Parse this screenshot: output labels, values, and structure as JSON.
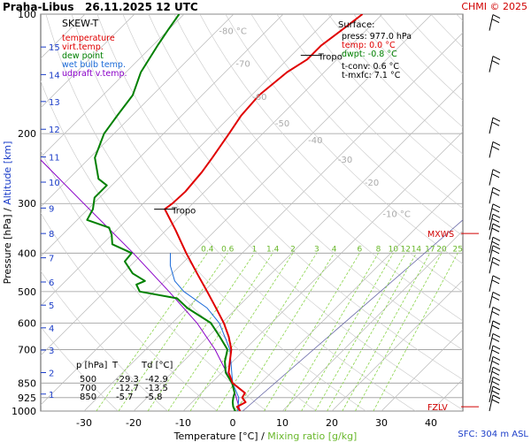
{
  "header": {
    "station": "Praha-Libus",
    "datetime": "26.11.2025 12 UTC",
    "credit": "CHMI © 2025"
  },
  "chart_data": {
    "type": "line",
    "title": "SKEW-T",
    "legend": [
      {
        "label": "temperature",
        "color": "#e00000"
      },
      {
        "label": "virt.temp.",
        "color": "#e00000"
      },
      {
        "label": "dew point",
        "color": "#008000"
      },
      {
        "label": "wet bulb temp.",
        "color": "#1a6ad8"
      },
      {
        "label": "udpraft v.temp.",
        "color": "#8a00c8"
      }
    ],
    "xlabel": "Temperature [°C]",
    "xlabel_sep": "/",
    "xlabel2": "Mixing ratio [g/kg]",
    "ylabel": "Pressure [hPa]",
    "ylabel_sep": "/",
    "ylabel2": "Altitude [km]",
    "x_ticks": [
      -30,
      -20,
      -10,
      0,
      10,
      20,
      30,
      40
    ],
    "xlim": [
      -37,
      43
    ],
    "y_ticks": [
      100,
      200,
      300,
      400,
      500,
      600,
      700,
      850,
      925,
      1000
    ],
    "ylim": [
      100,
      1000
    ],
    "y_scale": "log",
    "km_ticks": [
      "1",
      "2",
      "3",
      "4",
      "5",
      "6",
      "7",
      "8",
      "9",
      "10",
      "11",
      "12",
      "13",
      "14",
      "15"
    ],
    "km_pressures": [
      906,
      800,
      702,
      617,
      541,
      473,
      411,
      357,
      308,
      265,
      229,
      195,
      166,
      142,
      121
    ],
    "isotherm_labels": [
      {
        "label": "-80 °C",
        "t": -80,
        "p": 110
      },
      {
        "label": "-70",
        "t": -70,
        "p": 133
      },
      {
        "label": "-60",
        "t": -60,
        "p": 161
      },
      {
        "label": "-50",
        "t": -50,
        "p": 188
      },
      {
        "label": "-40",
        "t": -40,
        "p": 207
      },
      {
        "label": "-30",
        "t": -30,
        "p": 232
      },
      {
        "label": "-20",
        "t": -20,
        "p": 265
      },
      {
        "label": "-10 °C",
        "t": -10,
        "p": 318
      }
    ],
    "mixing_ratio_labels": [
      "0.4",
      "0.6",
      "1",
      "1.4",
      "2",
      "3",
      "4",
      "6",
      "8",
      "10",
      "12",
      "14",
      "17",
      "20",
      "25"
    ],
    "mixing_ratio_values": [
      0.4,
      0.6,
      1,
      1.4,
      2,
      3,
      4,
      6,
      8,
      10,
      12,
      14,
      17,
      20,
      25
    ],
    "temperature": [
      [
        1000,
        1.5
      ],
      [
        975,
        0.0
      ],
      [
        950,
        0.8
      ],
      [
        925,
        -0.8
      ],
      [
        900,
        -1.2
      ],
      [
        850,
        -5.7
      ],
      [
        800,
        -8.6
      ],
      [
        750,
        -10.6
      ],
      [
        700,
        -12.7
      ],
      [
        650,
        -15.8
      ],
      [
        600,
        -19.6
      ],
      [
        550,
        -24.2
      ],
      [
        500,
        -29.3
      ],
      [
        450,
        -35.0
      ],
      [
        400,
        -41.3
      ],
      [
        350,
        -48.1
      ],
      [
        310,
        -54.5
      ],
      [
        300,
        -54.1
      ],
      [
        280,
        -53.9
      ],
      [
        250,
        -54.5
      ],
      [
        230,
        -55.3
      ],
      [
        200,
        -56.8
      ],
      [
        180,
        -58.0
      ],
      [
        160,
        -58.5
      ],
      [
        140,
        -57.5
      ],
      [
        130,
        -56.0
      ],
      [
        120,
        -56.0
      ],
      [
        110,
        -55.0
      ],
      [
        100,
        -54.0
      ]
    ],
    "dew_point": [
      [
        1000,
        0.5
      ],
      [
        975,
        -0.8
      ],
      [
        950,
        -1.8
      ],
      [
        925,
        -2.6
      ],
      [
        900,
        -3.3
      ],
      [
        850,
        -5.8
      ],
      [
        800,
        -9.2
      ],
      [
        750,
        -11.6
      ],
      [
        700,
        -13.5
      ],
      [
        650,
        -17.6
      ],
      [
        600,
        -22.2
      ],
      [
        550,
        -30.0
      ],
      [
        520,
        -34.0
      ],
      [
        500,
        -42.9
      ],
      [
        480,
        -45.0
      ],
      [
        470,
        -44.0
      ],
      [
        450,
        -48.0
      ],
      [
        420,
        -52.0
      ],
      [
        400,
        -52.3
      ],
      [
        380,
        -58.0
      ],
      [
        360,
        -60.0
      ],
      [
        345,
        -62.0
      ],
      [
        330,
        -68.0
      ],
      [
        310,
        -69.0
      ],
      [
        290,
        -71.0
      ],
      [
        270,
        -71.0
      ],
      [
        260,
        -74.0
      ],
      [
        230,
        -79.0
      ],
      [
        200,
        -82.0
      ],
      [
        180,
        -83.0
      ],
      [
        160,
        -84.0
      ],
      [
        140,
        -87.0
      ],
      [
        120,
        -89.0
      ],
      [
        110,
        -90.0
      ],
      [
        100,
        -91.0
      ]
    ],
    "wet_bulb": [
      [
        1000,
        1.0
      ],
      [
        925,
        -1.5
      ],
      [
        850,
        -5.7
      ],
      [
        700,
        -13.0
      ],
      [
        600,
        -20.5
      ],
      [
        550,
        -26.0
      ],
      [
        500,
        -34.0
      ],
      [
        470,
        -38.0
      ],
      [
        430,
        -42.0
      ],
      [
        400,
        -44.5
      ]
    ],
    "parcel": [
      [
        1000,
        1.5
      ],
      [
        925,
        -2.0
      ],
      [
        850,
        -5.8
      ],
      [
        700,
        -16.0
      ],
      [
        600,
        -25.0
      ],
      [
        500,
        -37.0
      ],
      [
        400,
        -52.0
      ],
      [
        300,
        -72.0
      ],
      [
        200,
        -100.0
      ],
      [
        150,
        -120.0
      ],
      [
        100,
        -150.0
      ]
    ],
    "tropopause": [
      {
        "label": "Tropo",
        "p": 310,
        "t": -54.5
      },
      {
        "label": "Tropo",
        "p": 127,
        "t": -56.0
      }
    ],
    "surface": {
      "title": "Surface:",
      "press": "press: 977.0 hPa",
      "temp": "temp: 0.0 °C",
      "dwpt": "dwpt: -0.8 °C",
      "tconv": "t-conv: 0.6 °C",
      "tmxfc": "t-mxfc: 7.1 °C"
    },
    "table": {
      "headers": [
        "p [hPa]",
        "T",
        "Td [°C]"
      ],
      "rows": [
        [
          "500",
          "-29.3",
          "-42.9"
        ],
        [
          "700",
          "-12.7",
          "-13.5"
        ],
        [
          "850",
          "-5.7",
          "-5.8"
        ]
      ]
    },
    "markers": [
      {
        "label": "MXWS",
        "p": 357,
        "color": "#d00000"
      },
      {
        "label": "FZLV",
        "p": 975,
        "color": "#d00000"
      }
    ],
    "wind_levels": [
      110,
      140,
      200,
      230,
      270,
      300,
      330,
      350,
      370,
      400,
      420,
      450,
      500,
      550,
      600,
      650,
      700,
      750,
      800,
      850,
      900,
      950,
      1000
    ],
    "sfc_text": "SFC: 304 m ASL",
    "colors": {
      "temperature": "#e00000",
      "dew_point": "#008000",
      "wet_bulb": "#1a6ad8",
      "parcel": "#8a00c8",
      "isotherm": "#b8b8b8",
      "mixing_ratio": "#8ad44a",
      "isobar": "#9a9a9a"
    }
  }
}
